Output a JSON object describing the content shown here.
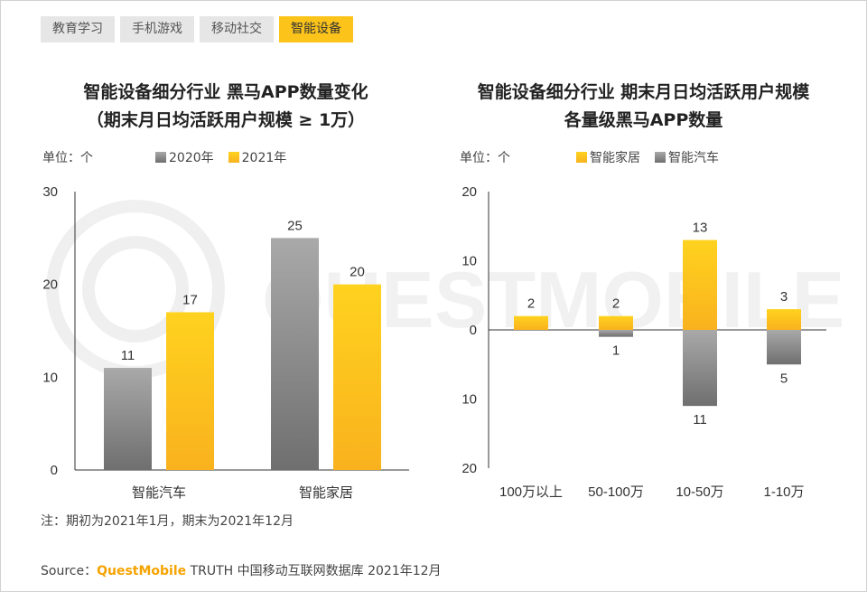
{
  "tabs": [
    {
      "label": "教育学习",
      "active": false
    },
    {
      "label": "手机游戏",
      "active": false
    },
    {
      "label": "移动社交",
      "active": false
    },
    {
      "label": "智能设备",
      "active": true
    }
  ],
  "colors": {
    "gray_light": "#a9a9a9",
    "gray_dark": "#6f6f6f",
    "gold_light": "#ffd21f",
    "gold_dark": "#f9b21e",
    "axis": "#333333"
  },
  "watermark_text": "QUESTMOBILE",
  "chart_data": [
    {
      "type": "bar",
      "title_line1": "智能设备细分行业 黑马APP数量变化",
      "title_line2": "（期末月日均活跃用户规模 ≥ 1万）",
      "unit_label": "单位：个",
      "categories": [
        "智能汽车",
        "智能家居"
      ],
      "series": [
        {
          "name": "2020年",
          "values": [
            11,
            25
          ],
          "color": "gray"
        },
        {
          "name": "2021年",
          "values": [
            17,
            20
          ],
          "color": "gold"
        }
      ],
      "ylim": [
        0,
        30
      ],
      "yticks": [
        "0",
        "10",
        "20",
        "30"
      ],
      "data_labels": [
        [
          "11",
          "25"
        ],
        [
          "17",
          "20"
        ]
      ]
    },
    {
      "type": "bar",
      "title_line1": "智能设备细分行业 期末月日均活跃用户规模",
      "title_line2": "各量级黑马APP数量",
      "unit_label": "单位：个",
      "categories": [
        "100万以上",
        "50-100万",
        "10-50万",
        "1-10万"
      ],
      "series": [
        {
          "name": "智能家居",
          "values": [
            2,
            2,
            13,
            3
          ],
          "color": "gold"
        },
        {
          "name": "智能汽车",
          "values": [
            0,
            -1,
            -11,
            -5
          ],
          "color": "gray"
        }
      ],
      "ylim": [
        -20,
        20
      ],
      "yticks": [
        "20",
        "10",
        "0",
        "10",
        "20"
      ],
      "data_labels": [
        [
          "2",
          "2",
          "13",
          "3"
        ],
        [
          "",
          "1",
          "11",
          "5"
        ]
      ]
    }
  ],
  "footer": {
    "note": "注：期初为2021年1月，期末为2021年12月",
    "source_prefix": "Source：",
    "source_brand": "QuestMobile",
    "source_rest": " TRUTH 中国移动互联网数据库 2021年12月"
  }
}
